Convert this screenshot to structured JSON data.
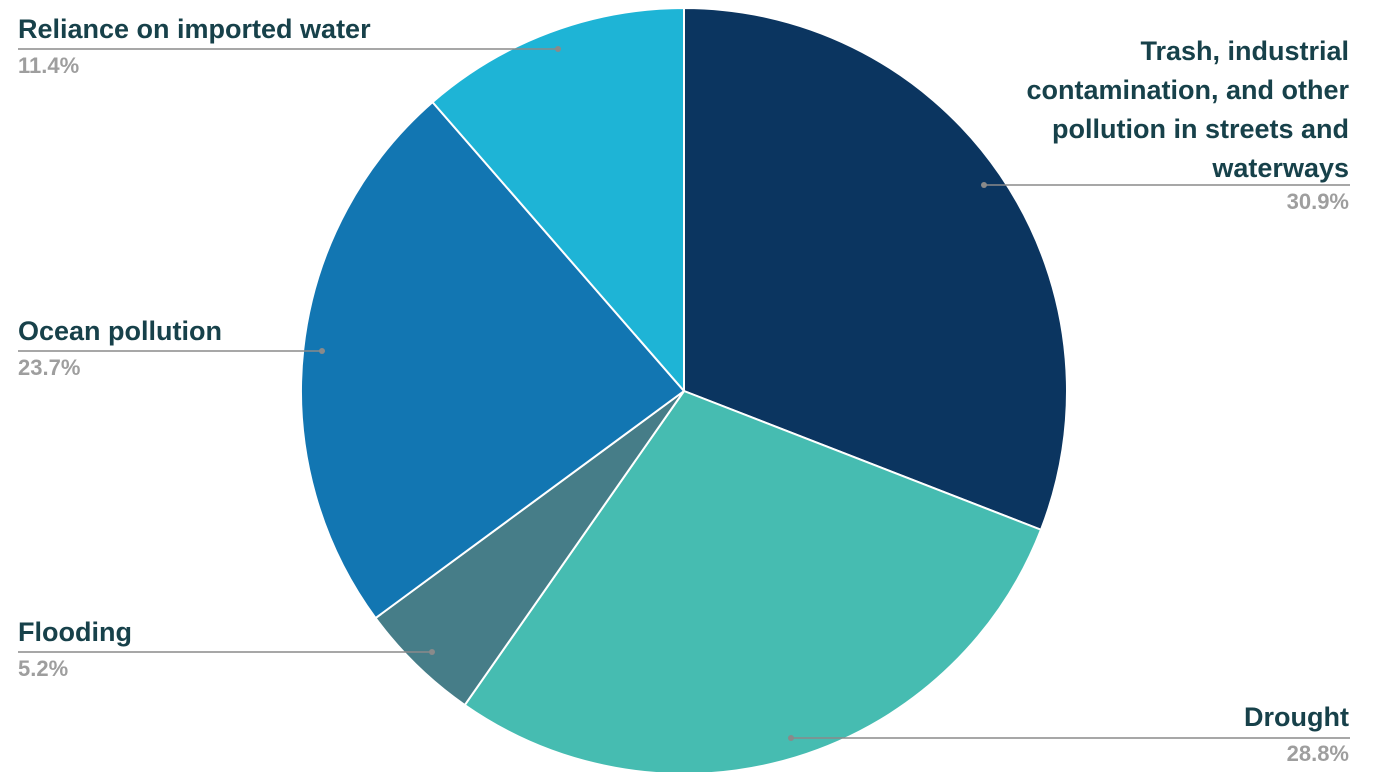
{
  "chart_data": {
    "type": "pie",
    "title": "",
    "start_angle_deg": 0,
    "direction": "clockwise",
    "slices": [
      {
        "label": "Trash, industrial contamination, and other pollution in streets and waterways",
        "value": 30.9,
        "display": "30.9%",
        "color": "#0b3560"
      },
      {
        "label": "Drought",
        "value": 28.8,
        "display": "28.8%",
        "color": "#46bcb1"
      },
      {
        "label": "Flooding",
        "value": 5.2,
        "display": "5.2%",
        "color": "#467d88"
      },
      {
        "label": "Ocean pollution",
        "value": 23.7,
        "display": "23.7%",
        "color": "#1276b2"
      },
      {
        "label": "Reliance on imported water",
        "value": 11.4,
        "display": "11.4%",
        "color": "#1eb4d6"
      }
    ]
  },
  "labels": {
    "trash_lines": [
      "Trash, industrial",
      "contamination, and other",
      "pollution in streets and",
      "waterways"
    ],
    "trash_pct": "30.9%",
    "drought": "Drought",
    "drought_pct": "28.8%",
    "flooding": "Flooding",
    "flooding_pct": "5.2%",
    "ocean": "Ocean pollution",
    "ocean_pct": "23.7%",
    "imported": "Reliance on imported water",
    "imported_pct": "11.4%"
  },
  "colors": {
    "label_text": "#17414a",
    "percent_text": "#9e9e9e",
    "leader_line": "#8a8a8a"
  }
}
